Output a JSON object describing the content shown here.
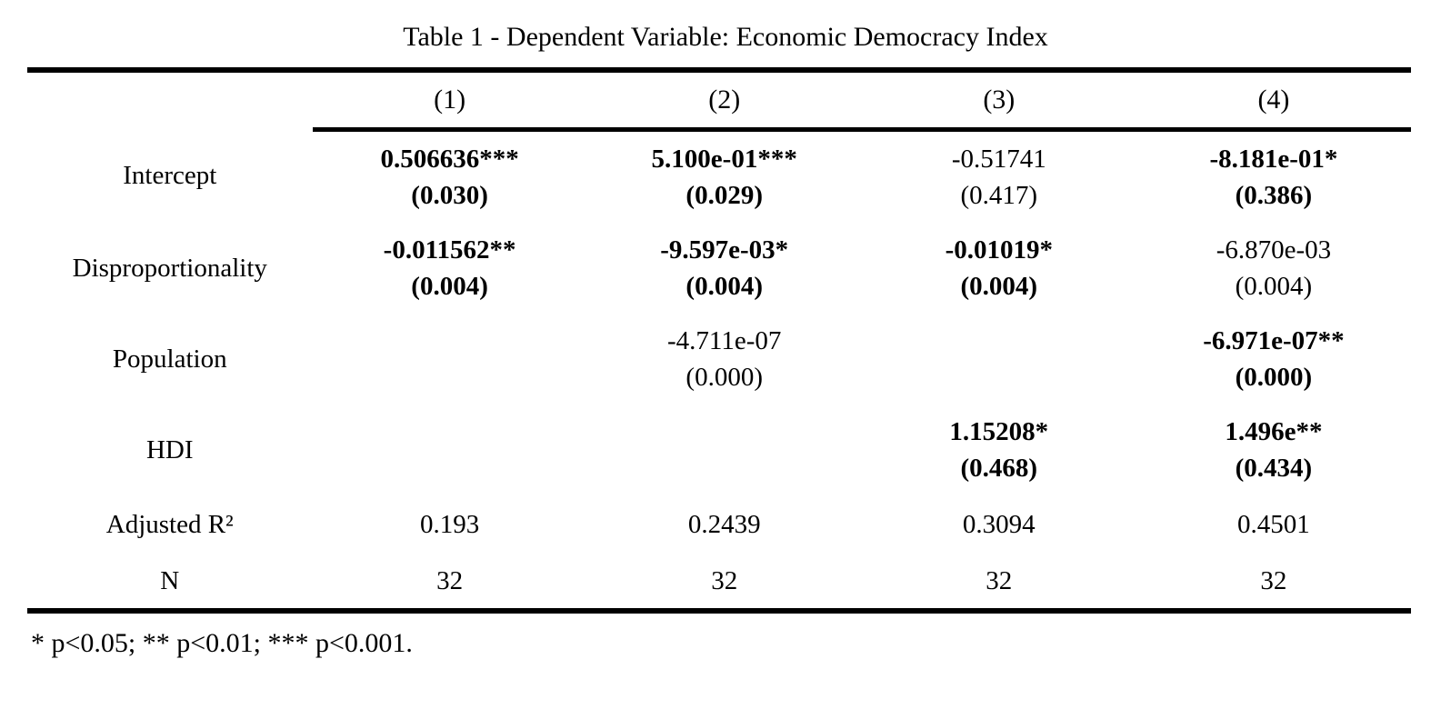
{
  "title": "Table 1 - Dependent Variable: Economic Democracy Index",
  "columns": [
    "(1)",
    "(2)",
    "(3)",
    "(4)"
  ],
  "coefficient_rows": [
    {
      "label": "Intercept",
      "cells": [
        {
          "estimate": "0.506636***",
          "se": "(0.030)",
          "bold": true
        },
        {
          "estimate": "5.100e-01***",
          "se": "(0.029)",
          "bold": true
        },
        {
          "estimate": "-0.51741",
          "se": "(0.417)",
          "bold": false
        },
        {
          "estimate": "-8.181e-01*",
          "se": "(0.386)",
          "bold": true
        }
      ]
    },
    {
      "label": "Disproportionality",
      "cells": [
        {
          "estimate": "-0.011562**",
          "se": "(0.004)",
          "bold": true
        },
        {
          "estimate": "-9.597e-03*",
          "se": "(0.004)",
          "bold": true
        },
        {
          "estimate": "-0.01019*",
          "se": "(0.004)",
          "bold": true
        },
        {
          "estimate": "-6.870e-03",
          "se": "(0.004)",
          "bold": false
        }
      ]
    },
    {
      "label": "Population",
      "cells": [
        {
          "estimate": "",
          "se": "",
          "bold": false
        },
        {
          "estimate": "-4.711e-07",
          "se": "(0.000)",
          "bold": false
        },
        {
          "estimate": "",
          "se": "",
          "bold": false
        },
        {
          "estimate": "-6.971e-07**",
          "se": "(0.000)",
          "bold": true
        }
      ]
    },
    {
      "label": "HDI",
      "cells": [
        {
          "estimate": "",
          "se": "",
          "bold": false
        },
        {
          "estimate": "",
          "se": "",
          "bold": false
        },
        {
          "estimate": "1.15208*",
          "se": "(0.468)",
          "bold": true
        },
        {
          "estimate": "1.496e**",
          "se": "(0.434)",
          "bold": true
        }
      ]
    }
  ],
  "stat_rows": [
    {
      "label": "Adjusted R²",
      "values": [
        "0.193",
        "0.2439",
        "0.3094",
        "0.4501"
      ]
    },
    {
      "label": "N",
      "values": [
        "32",
        "32",
        "32",
        "32"
      ]
    }
  ],
  "footnote": "* p<0.05; ** p<0.01; *** p<0.001.",
  "colors": {
    "text": "#000000",
    "background": "#ffffff",
    "rule": "#000000"
  }
}
